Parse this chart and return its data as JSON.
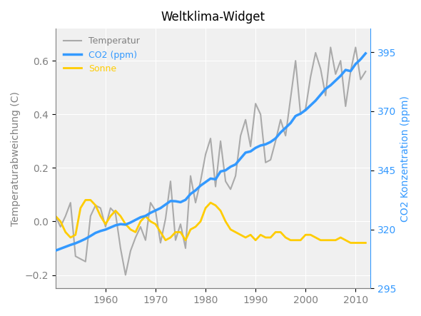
{
  "title": "Weltklima-Widget",
  "ylabel_left": "Temperaturabweichung (C)",
  "ylabel_right": "CO2 Konzentration (ppm)",
  "ylim_left": [
    -0.25,
    0.72
  ],
  "ylim_right": [
    295,
    405
  ],
  "xlim": [
    1950,
    2013
  ],
  "xticks": [
    1960,
    1970,
    1980,
    1990,
    2000,
    2010
  ],
  "yticks_left": [
    -0.2,
    0.0,
    0.2,
    0.4,
    0.6
  ],
  "yticks_right": [
    295,
    320,
    345,
    370,
    395
  ],
  "legend_labels": [
    "Temperatur",
    "CO2 (ppm)",
    "Sonne"
  ],
  "legend_colors": [
    "#b0b0b0",
    "#3399ff",
    "#ffcc00"
  ],
  "bg_color": "#f0f0f0",
  "temp_color": "#aaaaaa",
  "co2_color": "#3399ff",
  "sonne_color": "#ffcc00",
  "temp_linewidth": 1.5,
  "co2_linewidth": 2.5,
  "sonne_linewidth": 2.0,
  "years": [
    1950,
    1951,
    1952,
    1953,
    1954,
    1955,
    1956,
    1957,
    1958,
    1959,
    1960,
    1961,
    1962,
    1963,
    1964,
    1965,
    1966,
    1967,
    1968,
    1969,
    1970,
    1971,
    1972,
    1973,
    1974,
    1975,
    1976,
    1977,
    1978,
    1979,
    1980,
    1981,
    1982,
    1983,
    1984,
    1985,
    1986,
    1987,
    1988,
    1989,
    1990,
    1991,
    1992,
    1993,
    1994,
    1995,
    1996,
    1997,
    1998,
    1999,
    2000,
    2001,
    2002,
    2003,
    2004,
    2005,
    2006,
    2007,
    2008,
    2009,
    2010,
    2011,
    2012
  ],
  "temperature": [
    0.02,
    -0.02,
    0.02,
    0.07,
    -0.13,
    -0.14,
    -0.15,
    0.02,
    0.06,
    0.05,
    -0.02,
    0.05,
    0.03,
    -0.1,
    -0.2,
    -0.11,
    -0.06,
    -0.02,
    -0.07,
    0.07,
    0.04,
    -0.08,
    0.01,
    0.15,
    -0.07,
    -0.01,
    -0.1,
    0.17,
    0.07,
    0.15,
    0.25,
    0.31,
    0.13,
    0.3,
    0.15,
    0.12,
    0.17,
    0.32,
    0.38,
    0.28,
    0.44,
    0.4,
    0.22,
    0.23,
    0.3,
    0.38,
    0.32,
    0.46,
    0.6,
    0.4,
    0.42,
    0.54,
    0.63,
    0.57,
    0.47,
    0.65,
    0.55,
    0.6,
    0.43,
    0.56,
    0.65,
    0.53,
    0.56
  ],
  "co2": [
    311,
    311.8,
    312.6,
    313.4,
    314.1,
    315.0,
    316.0,
    317.2,
    318.5,
    319.3,
    319.9,
    320.8,
    321.7,
    322.2,
    322.0,
    322.9,
    324.0,
    325.1,
    325.7,
    327.0,
    328.0,
    329.0,
    330.5,
    332.0,
    331.9,
    331.5,
    332.5,
    335.0,
    336.5,
    338.5,
    340.0,
    341.5,
    341.2,
    344.5,
    345.0,
    346.5,
    347.5,
    350.0,
    352.5,
    353.0,
    354.5,
    355.5,
    356.0,
    357.0,
    358.5,
    361.0,
    363.0,
    365.0,
    368.0,
    369.0,
    370.5,
    372.5,
    374.5,
    377.0,
    379.5,
    381.0,
    383.0,
    385.0,
    387.5,
    387.0,
    390.0,
    392.0,
    394.5
  ],
  "sonne": [
    0.02,
    0.0,
    -0.04,
    -0.06,
    -0.05,
    0.05,
    0.08,
    0.08,
    0.06,
    0.02,
    -0.01,
    0.02,
    0.04,
    0.02,
    -0.01,
    -0.03,
    -0.04,
    0.0,
    0.02,
    0.0,
    -0.01,
    -0.04,
    -0.07,
    -0.06,
    -0.04,
    -0.04,
    -0.07,
    -0.03,
    -0.02,
    0.0,
    0.05,
    0.07,
    0.06,
    0.04,
    0.0,
    -0.03,
    -0.04,
    -0.05,
    -0.06,
    -0.05,
    -0.07,
    -0.05,
    -0.06,
    -0.06,
    -0.04,
    -0.04,
    -0.06,
    -0.07,
    -0.07,
    -0.07,
    -0.05,
    -0.05,
    -0.06,
    -0.07,
    -0.07,
    -0.07,
    -0.07,
    -0.06,
    -0.07,
    -0.08,
    -0.08,
    -0.08,
    -0.08
  ]
}
